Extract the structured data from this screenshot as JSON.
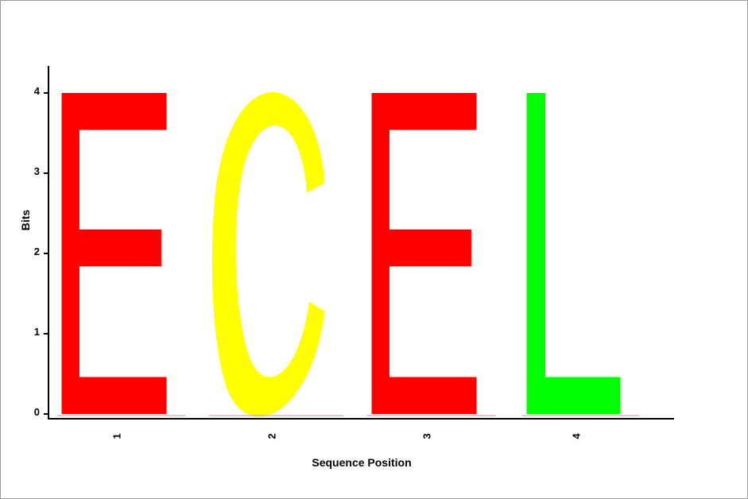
{
  "chart_data": {
    "type": "sequence-logo",
    "xlabel": "Sequence Position",
    "ylabel": "Bits",
    "ylim": [
      0,
      4
    ],
    "y_ticks": [
      "0",
      "1",
      "2",
      "3",
      "4"
    ],
    "positions": [
      {
        "label": "1",
        "letter": "E",
        "bits": 4.0,
        "color": "#ff0000"
      },
      {
        "label": "2",
        "letter": "C",
        "bits": 4.0,
        "color": "#ffff00"
      },
      {
        "label": "3",
        "letter": "E",
        "bits": 4.0,
        "color": "#ff0000"
      },
      {
        "label": "4",
        "letter": "L",
        "bits": 4.0,
        "color": "#00ff00"
      }
    ]
  }
}
